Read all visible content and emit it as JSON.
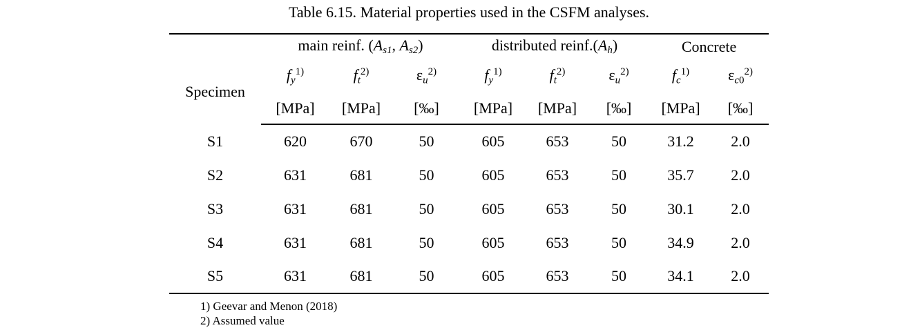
{
  "caption": "Table 6.15. Material properties used in the CSFM analyses.",
  "table": {
    "specimen_header": "Specimen",
    "groups": [
      {
        "name": "main-reinforcement",
        "runs": [
          {
            "t": "main reinf. ("
          },
          {
            "t": "A",
            "c": "i"
          },
          {
            "t": "s1",
            "c": "i sub"
          },
          {
            "t": ", "
          },
          {
            "t": "A",
            "c": "i"
          },
          {
            "t": "s2",
            "c": "i sub"
          },
          {
            "t": ")"
          }
        ]
      },
      {
        "name": "distributed-reinforcement",
        "runs": [
          {
            "t": "distributed reinf.("
          },
          {
            "t": "A",
            "c": "i"
          },
          {
            "t": "h",
            "c": "i sub"
          },
          {
            "t": ")"
          }
        ]
      },
      {
        "name": "concrete",
        "runs": [
          {
            "t": "Concrete"
          }
        ]
      }
    ],
    "columns": [
      {
        "symbol": [
          {
            "t": "f",
            "c": "i"
          },
          {
            "t": "y",
            "c": "i sub"
          },
          {
            "t": "1)",
            "c": "sup"
          }
        ],
        "unit": "[MPa]"
      },
      {
        "symbol": [
          {
            "t": "f",
            "c": "i"
          },
          {
            "t": "t",
            "c": "i sub"
          },
          {
            "t": "2)",
            "c": "sup"
          }
        ],
        "unit": "[MPa]"
      },
      {
        "symbol": [
          {
            "t": "ε"
          },
          {
            "t": "u",
            "c": "i sub"
          },
          {
            "t": "2)",
            "c": "sup"
          }
        ],
        "unit": "[‰]"
      },
      {
        "symbol": [
          {
            "t": "f",
            "c": "i"
          },
          {
            "t": "y",
            "c": "i sub"
          },
          {
            "t": "1)",
            "c": "sup"
          }
        ],
        "unit": "[MPa]"
      },
      {
        "symbol": [
          {
            "t": "f",
            "c": "i"
          },
          {
            "t": "t",
            "c": "i sub"
          },
          {
            "t": "2)",
            "c": "sup"
          }
        ],
        "unit": "[MPa]"
      },
      {
        "symbol": [
          {
            "t": "ε"
          },
          {
            "t": "u",
            "c": "i sub"
          },
          {
            "t": "2)",
            "c": "sup"
          }
        ],
        "unit": "[‰]"
      },
      {
        "symbol": [
          {
            "t": "f",
            "c": "i"
          },
          {
            "t": "c",
            "c": "i sub"
          },
          {
            "t": "1)",
            "c": "sup"
          }
        ],
        "unit": "[MPa]"
      },
      {
        "symbol": [
          {
            "t": "ε"
          },
          {
            "t": "c",
            "c": "i sub"
          },
          {
            "t": "0",
            "c": "sub"
          },
          {
            "t": "2)",
            "c": "sup"
          }
        ],
        "unit": "[‰]"
      }
    ],
    "rows": [
      {
        "specimen": "S1",
        "values": [
          "620",
          "670",
          "50",
          "605",
          "653",
          "50",
          "31.2",
          "2.0"
        ]
      },
      {
        "specimen": "S2",
        "values": [
          "631",
          "681",
          "50",
          "605",
          "653",
          "50",
          "35.7",
          "2.0"
        ]
      },
      {
        "specimen": "S3",
        "values": [
          "631",
          "681",
          "50",
          "605",
          "653",
          "50",
          "30.1",
          "2.0"
        ]
      },
      {
        "specimen": "S4",
        "values": [
          "631",
          "681",
          "50",
          "605",
          "653",
          "50",
          "34.9",
          "2.0"
        ]
      },
      {
        "specimen": "S5",
        "values": [
          "631",
          "681",
          "50",
          "605",
          "653",
          "50",
          "34.1",
          "2.0"
        ]
      }
    ]
  },
  "footnotes": [
    "1) Geevar and Menon (2018)",
    "2) Assumed value"
  ]
}
